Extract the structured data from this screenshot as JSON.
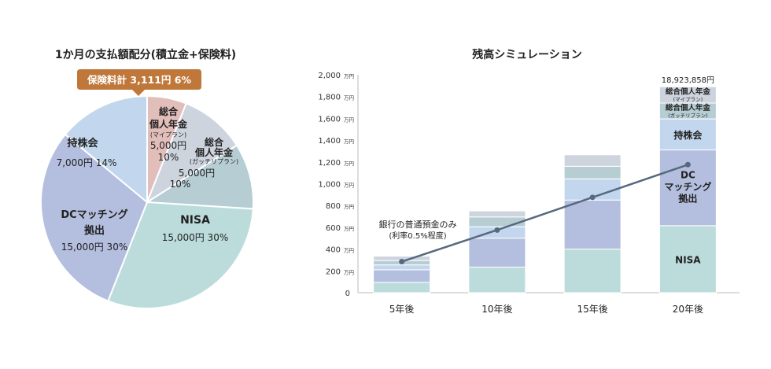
{
  "chart_data": [
    {
      "type": "pie",
      "title": "1か月の支払額配分(積立金+保険料)",
      "colors": {
        "insurance": "#e2bebb",
        "mine": "#cdd4de",
        "gacchiri": "#b7cdd4",
        "nisa": "#bcdcdc",
        "dc": "#b4bede",
        "mochikabu": "#c2d7ed",
        "callout": "#c0783a"
      },
      "slices": [
        {
          "key": "insurance",
          "label_lines": [
            "保険料計"
          ],
          "amount": "3,111円",
          "pct": "6%",
          "value": 6
        },
        {
          "key": "mine",
          "label_lines": [
            "総合",
            "個人年金"
          ],
          "sub": "(マイプラン)",
          "amount": "5,000円",
          "pct": "10%",
          "value": 10
        },
        {
          "key": "gacchiri",
          "label_lines": [
            "総合",
            "個人年金"
          ],
          "sub": "(ガッチリプラン)",
          "amount": "5,000円",
          "pct": "10%",
          "value": 10
        },
        {
          "key": "nisa",
          "label_lines": [
            "NISA"
          ],
          "amount": "15,000円",
          "pct": "30%",
          "value": 30
        },
        {
          "key": "dc",
          "label_lines": [
            "DCマッチング",
            "拠出"
          ],
          "amount": "15,000円",
          "pct": "30%",
          "value": 30
        },
        {
          "key": "mochikabu",
          "label_lines": [
            "持株会"
          ],
          "amount": "7,000円",
          "pct": "14%",
          "value": 14
        }
      ]
    },
    {
      "type": "bar",
      "stacked": true,
      "title": "残高シミュレーション",
      "categories": [
        "5年後",
        "10年後",
        "15年後",
        "20年後"
      ],
      "ylim": [
        0,
        2000
      ],
      "yticks": [
        0,
        200,
        400,
        600,
        800,
        1000,
        1200,
        1400,
        1600,
        1800,
        2000
      ],
      "ytick_labels": [
        "0",
        "200",
        "400",
        "600",
        "800",
        "1,000",
        "1,200",
        "1,400",
        "1,600",
        "1,800",
        "2,000"
      ],
      "ytick_unit": "万円",
      "series": [
        {
          "name": "NISA",
          "color": "#bcdcdc",
          "values": [
            95,
            235,
            400,
            615
          ]
        },
        {
          "name": "DC\nマッチング\n拠出",
          "color": "#b4bede",
          "values": [
            115,
            265,
            450,
            695
          ]
        },
        {
          "name": "持株会",
          "color": "#c2d7ed",
          "values": [
            45,
            105,
            195,
            285
          ]
        },
        {
          "name": "総合個人年金(ガッチリプラン)",
          "color": "#b7cdd4",
          "values": [
            40,
            90,
            115,
            145
          ]
        },
        {
          "name": "総合個人年金(マイプラン)",
          "color": "#cdd4de",
          "values": [
            40,
            55,
            105,
            150
          ]
        }
      ],
      "segment_labels": {
        "NISA": "NISA",
        "DC": [
          "DC",
          "マッチング",
          "拠出"
        ],
        "持株会": "持株会",
        "gacchiri_main": "総合個人年金",
        "gacchiri_sub": "(ガッチリプラン)",
        "mine_main": "総合個人年金",
        "mine_sub": "(マイプラン)"
      },
      "total_label": "18,923,858円",
      "line": {
        "name": "銀行の普通預金のみ",
        "note": "(利率0.5%程度)",
        "color": "#56697f",
        "values": [
          285,
          575,
          875,
          1175
        ]
      }
    }
  ]
}
